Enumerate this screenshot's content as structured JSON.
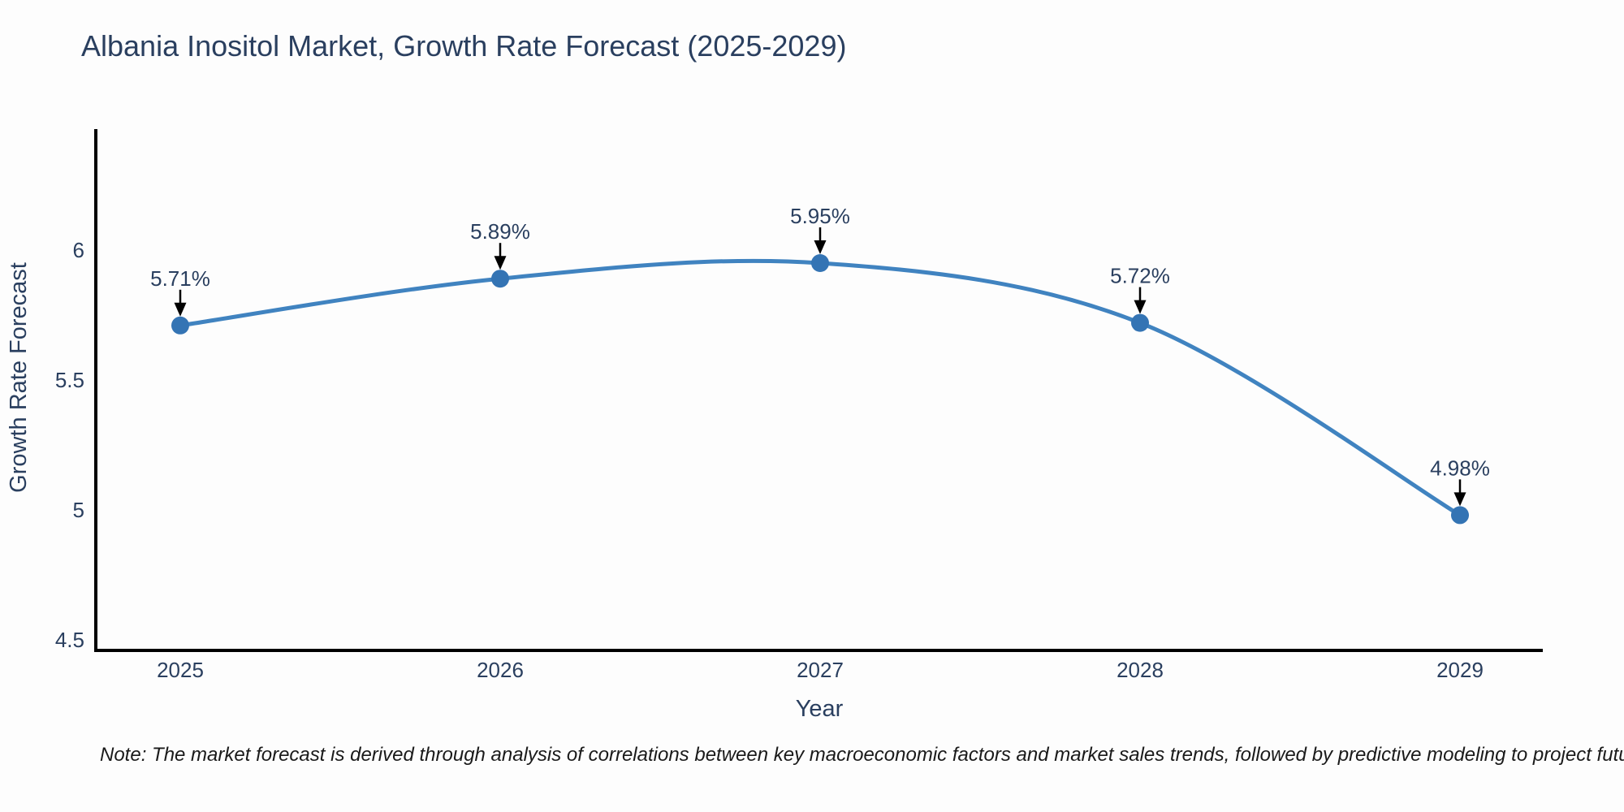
{
  "title": "Albania Inositol Market, Growth Rate Forecast (2025-2029)",
  "note": "Note: The market forecast is derived through analysis of correlations between key macroeconomic factors and market sales trends, followed by predictive modeling to project future sales",
  "chart_data": {
    "type": "line",
    "title": "Albania Inositol Market, Growth Rate Forecast (2025-2029)",
    "xlabel": "Year",
    "ylabel": "Growth Rate Forecast",
    "x": [
      "2025",
      "2026",
      "2027",
      "2028",
      "2029"
    ],
    "y": [
      5.71,
      5.89,
      5.95,
      5.72,
      4.98
    ],
    "point_labels": [
      "5.71%",
      "5.89%",
      "5.95%",
      "5.72%",
      "4.98%"
    ],
    "yticks": [
      6,
      5.5,
      5,
      4.5
    ],
    "ylim": [
      4.46,
      6.47
    ],
    "line_shape": "spline",
    "grid": false,
    "legend": "none",
    "colors": {
      "line": "#4083c0",
      "marker": "#3474b4",
      "annotation_arrow": "#000000",
      "axis": "#000000",
      "text": "#2a3f5f",
      "note_text": "#1a1a1a",
      "background": "#fdfdfd"
    }
  }
}
